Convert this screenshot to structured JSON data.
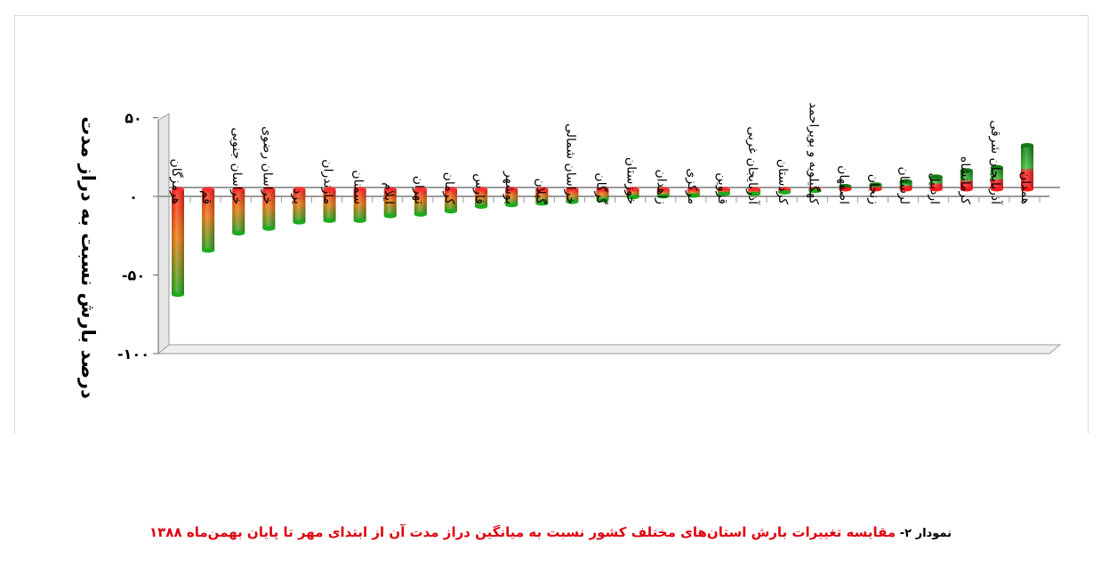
{
  "chart_data": {
    "type": "bar",
    "ylabel": "درصد بارش نسبت به دراز مدت",
    "ylim": [
      -100,
      50
    ],
    "yticks": [
      50,
      0,
      -50,
      -100
    ],
    "ytick_labels": [
      "۵۰",
      "۰",
      "-۵۰",
      "-۱۰۰"
    ],
    "grid": false,
    "legend": "none",
    "style": "3d-cylinder",
    "colors": {
      "negative_top": "#ff1a1a",
      "negative_bottom": "#22a822",
      "positive_top": "#1e8f1e",
      "positive_bottom": "#ff1a1a"
    },
    "categories": [
      "هرمزگان",
      "قم",
      "خراسان جنوبی",
      "خراسان رضوی",
      "یزد",
      "مازندران",
      "سمنان",
      "ایلام",
      "تهران",
      "کرمان",
      "فارس",
      "بوشهر",
      "گیلان",
      "خراسان شمالی",
      "گرگان",
      "خوزستان",
      "زاهدان",
      "مرکزی",
      "قزوین",
      "آذربایجان غربی",
      "کردستان",
      "کهگیلویه و بویراحمد",
      "اصفهان",
      "زنجان",
      "لرستان",
      "اردبیل",
      "کرمانشاه",
      "آذربایجان شرقی",
      "همدان"
    ],
    "values": [
      -67,
      -39,
      -28,
      -25,
      -21,
      -20,
      -20,
      -17,
      -16,
      -14,
      -11,
      -10,
      -9,
      -8,
      -7,
      -5,
      -4.5,
      -4,
      -3,
      -3,
      -2,
      -1,
      2,
      3,
      5,
      8,
      12,
      14,
      28
    ]
  },
  "caption": {
    "lead": "نمودار ۲- ",
    "text": "مقایسه تغییرات بارش استان‌های مختلف کشور نسبت به میانگین دراز مدت آن از ابتدای مهر تا پایان بهمن‌ماه ۱۳۸۸"
  }
}
